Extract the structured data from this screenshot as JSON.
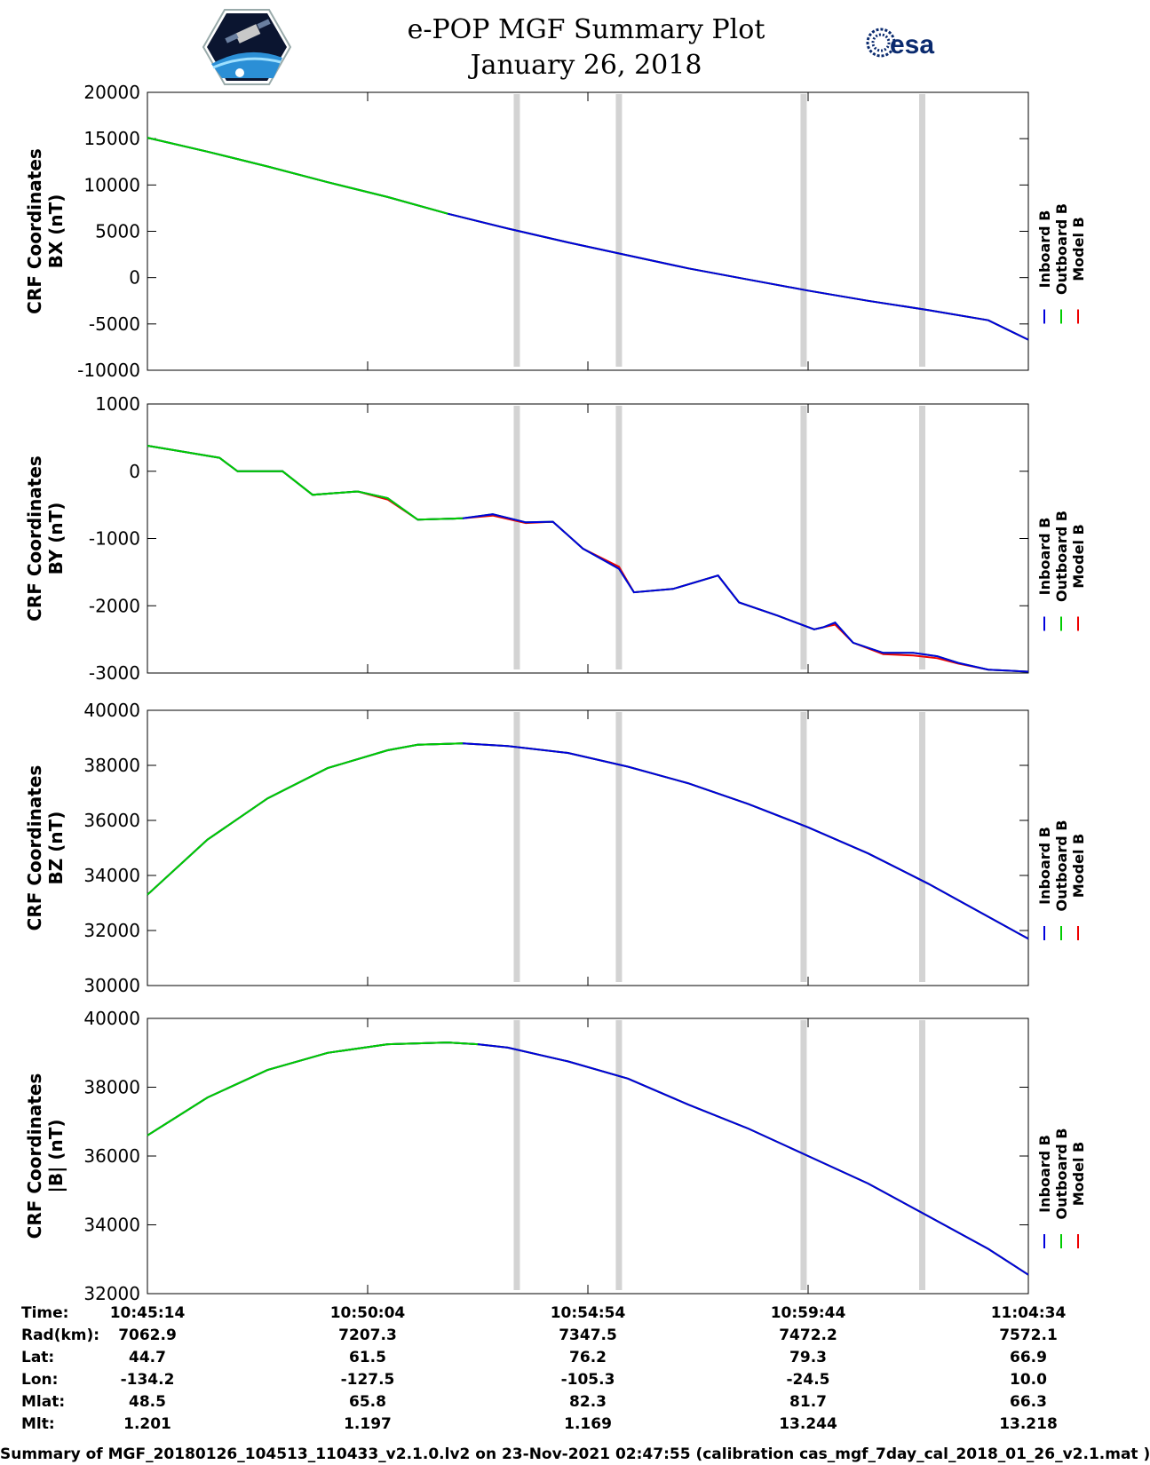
{
  "header": {
    "title": "e-POP MGF Summary Plot",
    "date": "January 26, 2018",
    "logo_right_text": "esa",
    "logo_left_name": "cassiope-mission-logo"
  },
  "chart_data": [
    {
      "type": "line",
      "panel": "bx",
      "ylabel_line1": "CRF Coordinates",
      "ylabel_line2": "BX (nT)",
      "ylim": [
        -10000,
        20000
      ],
      "yticks": [
        20000,
        15000,
        10000,
        5000,
        0,
        -5000,
        -10000
      ],
      "x_minutes": [
        0,
        2,
        4,
        6,
        8,
        10,
        12,
        14,
        16,
        18,
        20,
        22,
        24,
        26,
        28,
        29.33
      ],
      "series": [
        {
          "name": "Inboard B",
          "color": "#0000dd",
          "values": [
            15100,
            13600,
            12000,
            10300,
            8700,
            6900,
            5300,
            3800,
            2400,
            1000,
            -200,
            -1400,
            -2500,
            -3500,
            -4600,
            -6700
          ]
        },
        {
          "name": "Outboard B",
          "color": "#00cc00",
          "values": [
            15100,
            13600,
            12000,
            10300,
            8700,
            6900,
            5300,
            3800,
            2400,
            1000,
            -200,
            -1400,
            -2500,
            -3500,
            -4600,
            -6700
          ]
        },
        {
          "name": "Model B",
          "color": "#ee0000",
          "values": [
            15100,
            13600,
            12000,
            10300,
            8700,
            6900,
            5300,
            3800,
            2400,
            1000,
            -200,
            -1400,
            -2500,
            -3500,
            -4600,
            -6700
          ]
        }
      ]
    },
    {
      "type": "line",
      "panel": "by",
      "ylabel_line1": "CRF Coordinates",
      "ylabel_line2": "BY (nT)",
      "ylim": [
        -3000,
        1000
      ],
      "yticks": [
        1000,
        0,
        -1000,
        -2000,
        -3000
      ],
      "x_minutes": [
        0,
        2.4,
        3,
        4.5,
        5.5,
        7,
        8,
        9,
        10.5,
        11.5,
        12.6,
        13.5,
        14.5,
        15.7,
        16.2,
        17.5,
        19,
        19.7,
        21,
        22.2,
        22.5,
        22.9,
        23.5,
        24.5,
        25.5,
        26.3,
        27,
        28,
        29.33
      ],
      "series": [
        {
          "name": "Inboard B",
          "color": "#0000dd",
          "values": [
            380,
            200,
            0,
            0,
            -350,
            -300,
            -400,
            -720,
            -700,
            -640,
            -760,
            -750,
            -1150,
            -1450,
            -1800,
            -1750,
            -1550,
            -1950,
            -2150,
            -2350,
            -2320,
            -2250,
            -2550,
            -2700,
            -2700,
            -2750,
            -2850,
            -2950,
            -2980
          ]
        },
        {
          "name": "Outboard B",
          "color": "#00cc00",
          "values": [
            380,
            200,
            0,
            0,
            -350,
            -300,
            -400,
            -720,
            -700,
            -640,
            -760,
            -750,
            -1150,
            -1450,
            -1800,
            -1750,
            -1550,
            -1950,
            -2150,
            -2350,
            -2320,
            -2250,
            -2550,
            -2700,
            -2700,
            -2750,
            -2850,
            -2950,
            -2980
          ]
        },
        {
          "name": "Model B",
          "color": "#ee0000",
          "values": [
            380,
            200,
            0,
            0,
            -350,
            -300,
            -420,
            -720,
            -700,
            -660,
            -770,
            -750,
            -1150,
            -1420,
            -1800,
            -1750,
            -1550,
            -1950,
            -2150,
            -2350,
            -2320,
            -2280,
            -2550,
            -2720,
            -2740,
            -2780,
            -2860,
            -2950,
            -2980
          ]
        }
      ]
    },
    {
      "type": "line",
      "panel": "bz",
      "ylabel_line1": "CRF Coordinates",
      "ylabel_line2": "BZ (nT)",
      "ylim": [
        30000,
        40000
      ],
      "yticks": [
        40000,
        38000,
        36000,
        34000,
        32000,
        30000
      ],
      "x_minutes": [
        0,
        2,
        4,
        6,
        8,
        9,
        10.5,
        12,
        14,
        16,
        18,
        20,
        22,
        24,
        26,
        28,
        29.33
      ],
      "series": [
        {
          "name": "Inboard B",
          "color": "#0000dd",
          "values": [
            33300,
            35300,
            36800,
            37900,
            38550,
            38750,
            38800,
            38700,
            38450,
            37950,
            37350,
            36600,
            35750,
            34800,
            33700,
            32500,
            31700
          ]
        },
        {
          "name": "Outboard B",
          "color": "#00cc00",
          "values": [
            33300,
            35300,
            36800,
            37900,
            38550,
            38750,
            38800,
            38700,
            38450,
            37950,
            37350,
            36600,
            35750,
            34800,
            33700,
            32500,
            31700
          ]
        },
        {
          "name": "Model B",
          "color": "#ee0000",
          "values": [
            33300,
            35300,
            36800,
            37900,
            38550,
            38750,
            38800,
            38700,
            38450,
            37950,
            37350,
            36600,
            35750,
            34800,
            33700,
            32500,
            31700
          ]
        }
      ]
    },
    {
      "type": "line",
      "panel": "bmag",
      "ylabel_line1": "CRF Coordinates",
      "ylabel_line2": "|B| (nT)",
      "ylim": [
        32000,
        40000
      ],
      "yticks": [
        40000,
        38000,
        36000,
        34000,
        32000
      ],
      "x_minutes": [
        0,
        2,
        4,
        6,
        8,
        10,
        11,
        12,
        14,
        16,
        18,
        20,
        22,
        24,
        26,
        28,
        29.33
      ],
      "series": [
        {
          "name": "Inboard B",
          "color": "#0000dd",
          "values": [
            36600,
            37700,
            38500,
            39000,
            39250,
            39300,
            39250,
            39150,
            38750,
            38250,
            37500,
            36800,
            36000,
            35200,
            34250,
            33300,
            32550
          ]
        },
        {
          "name": "Outboard B",
          "color": "#00cc00",
          "values": [
            36600,
            37700,
            38500,
            39000,
            39250,
            39300,
            39250,
            39150,
            38750,
            38250,
            37500,
            36800,
            36000,
            35200,
            34250,
            33300,
            32550
          ]
        },
        {
          "name": "Model B",
          "color": "#ee0000",
          "values": [
            36600,
            37700,
            38500,
            39000,
            39250,
            39300,
            39250,
            39150,
            38750,
            38250,
            37500,
            36800,
            36000,
            35200,
            34250,
            33300,
            32550
          ]
        }
      ]
    }
  ],
  "time_axis": {
    "range_minutes": [
      0,
      29.333
    ],
    "tick_minutes": [
      0,
      7.333,
      14.667,
      22,
      29.333
    ],
    "gap_bands_minutes": [
      12.3,
      15.7,
      21.85,
      25.8
    ]
  },
  "legend": {
    "entries": [
      {
        "label": "Inboard B",
        "color": "#0000dd"
      },
      {
        "label": "Outboard B",
        "color": "#00cc00"
      },
      {
        "label": "Model B",
        "color": "#ee0000"
      }
    ]
  },
  "ephemeris": {
    "rows": [
      {
        "label": "Time:",
        "values": [
          "10:45:14",
          "10:50:04",
          "10:54:54",
          "10:59:44",
          "11:04:34"
        ]
      },
      {
        "label": "Rad(km):",
        "values": [
          "7062.9",
          "7207.3",
          "7347.5",
          "7472.2",
          "7572.1"
        ]
      },
      {
        "label": "Lat:",
        "values": [
          "44.7",
          "61.5",
          "76.2",
          "79.3",
          "66.9"
        ]
      },
      {
        "label": "Lon:",
        "values": [
          "-134.2",
          "-127.5",
          "-105.3",
          "-24.5",
          "10.0"
        ]
      },
      {
        "label": "Mlat:",
        "values": [
          "48.5",
          "65.8",
          "82.3",
          "81.7",
          "66.3"
        ]
      },
      {
        "label": "Mlt:",
        "values": [
          "1.201",
          "1.197",
          "1.169",
          "13.244",
          "13.218"
        ]
      }
    ]
  },
  "footer": {
    "text": "Summary of MGF_20180126_104513_110433_v2.1.0.lv2 on 23-Nov-2021 02:47:55 (calibration cas_mgf_7day_cal_2018_01_26_v2.1.mat )"
  }
}
